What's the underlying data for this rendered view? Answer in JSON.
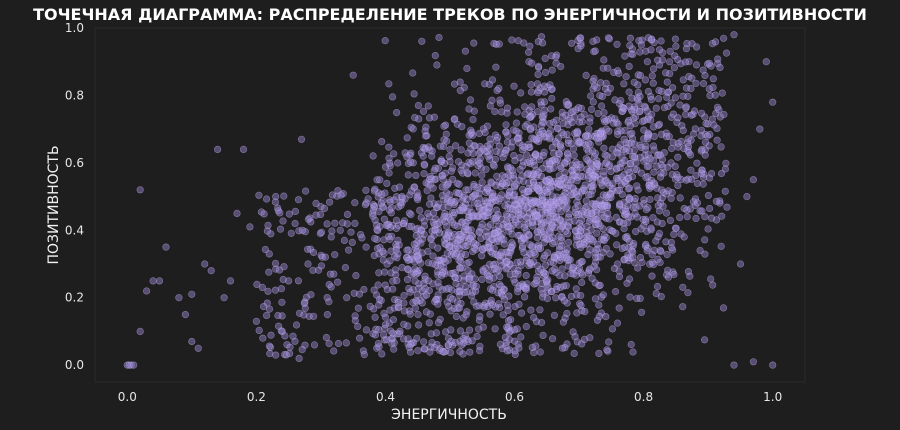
{
  "chart_data": {
    "type": "scatter",
    "title": "ТОЧЕЧНАЯ ДИАГРАММА: РАСПРЕДЕЛЕНИЕ ТРЕКОВ ПО ЭНЕРГИЧНОСТИ И ПОЗИТИВНОСТИ",
    "xlabel": "ЭНЕРГИЧНОСТЬ",
    "ylabel": "ПОЗИТИВНОСТЬ",
    "xlim": [
      -0.05,
      1.05
    ],
    "ylim": [
      -0.05,
      1.0
    ],
    "x_ticks": [
      "0.0",
      "0.2",
      "0.4",
      "0.6",
      "0.8",
      "1.0"
    ],
    "y_ticks": [
      "0.0",
      "0.2",
      "0.4",
      "0.6",
      "0.8",
      "1.0"
    ],
    "grid": false,
    "marker_color": "#9e8ad6",
    "marker_edge_color": "#c7b8f5",
    "background_color": "#1e1e1e",
    "points": [
      [
        0.0,
        0.0
      ],
      [
        0.003,
        0.0
      ],
      [
        0.006,
        0.0
      ],
      [
        0.01,
        0.0
      ],
      [
        0.02,
        0.52
      ],
      [
        0.04,
        0.25
      ],
      [
        0.05,
        0.25
      ],
      [
        0.06,
        0.35
      ],
      [
        0.03,
        0.22
      ],
      [
        0.02,
        0.1
      ],
      [
        0.08,
        0.2
      ],
      [
        0.09,
        0.15
      ],
      [
        0.1,
        0.21
      ],
      [
        0.1,
        0.07
      ],
      [
        0.11,
        0.05
      ],
      [
        0.12,
        0.3
      ],
      [
        0.13,
        0.28
      ],
      [
        0.14,
        0.64
      ],
      [
        0.15,
        0.2
      ],
      [
        0.16,
        0.25
      ],
      [
        0.17,
        0.45
      ],
      [
        0.18,
        0.64
      ],
      [
        0.19,
        0.41
      ],
      [
        0.2,
        0.13
      ],
      [
        0.21,
        0.08
      ],
      [
        0.22,
        0.33
      ],
      [
        0.23,
        0.5
      ],
      [
        0.24,
        0.1
      ],
      [
        0.25,
        0.25
      ],
      [
        0.26,
        0.42
      ],
      [
        0.27,
        0.67
      ],
      [
        0.28,
        0.3
      ],
      [
        0.29,
        0.06
      ],
      [
        0.3,
        0.47
      ],
      [
        0.31,
        0.15
      ],
      [
        0.32,
        0.27
      ],
      [
        0.33,
        0.4
      ],
      [
        0.34,
        0.2
      ],
      [
        0.35,
        0.86
      ],
      [
        0.36,
        0.08
      ],
      [
        0.37,
        0.35
      ],
      [
        0.38,
        0.45
      ],
      [
        0.39,
        0.33
      ],
      [
        0.4,
        0.12
      ],
      [
        0.99,
        0.9
      ],
      [
        0.98,
        0.7
      ],
      [
        1.0,
        0.78
      ],
      [
        0.97,
        0.01
      ],
      [
        1.0,
        0.0
      ],
      [
        0.94,
        0.0
      ],
      [
        0.94,
        0.98
      ],
      [
        0.95,
        0.3
      ],
      [
        0.96,
        0.5
      ],
      [
        0.97,
        0.55
      ]
    ]
  }
}
